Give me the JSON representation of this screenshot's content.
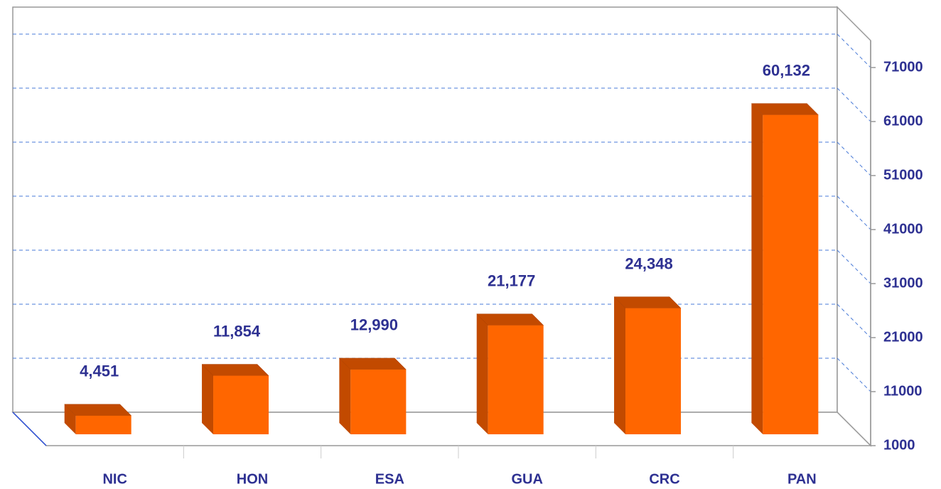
{
  "chart_data": {
    "type": "bar3d",
    "categories": [
      "NIC",
      "HON",
      "ESA",
      "GUA",
      "CRC",
      "PAN"
    ],
    "values": [
      4451,
      11854,
      12990,
      21177,
      24348,
      60132
    ],
    "value_labels": [
      "4,451",
      "11,854",
      "12,990",
      "21,177",
      "24,348",
      "60,132"
    ],
    "color": "#ff6600",
    "side_color": "#c24a00",
    "ylim": [
      1000,
      76000
    ],
    "yticks": [
      1000,
      11000,
      21000,
      31000,
      41000,
      51000,
      61000,
      71000
    ],
    "grid": true
  }
}
